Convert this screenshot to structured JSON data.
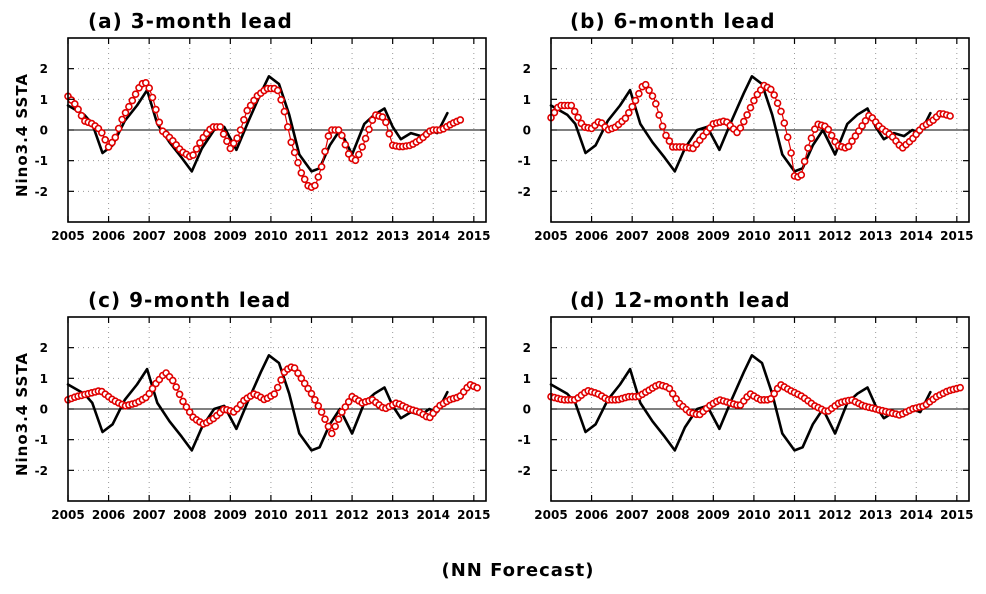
{
  "figure": {
    "footer": "(NN Forecast)"
  },
  "colors": {
    "observed": "#000000",
    "forecast": "#e00000",
    "grid": "#9a9a9a"
  },
  "chart_data": [
    {
      "type": "line",
      "title": "(a) 3-month lead",
      "ylabel": "Nino3.4 SSTA",
      "xlim": [
        2005,
        2015.3
      ],
      "ylim": [
        -3,
        3
      ],
      "xticks": [
        2005,
        2006,
        2007,
        2008,
        2009,
        2010,
        2011,
        2012,
        2013,
        2014,
        2015
      ],
      "yticks": [
        -2,
        -1,
        0,
        1,
        2
      ],
      "grid": true,
      "series": [
        {
          "style": "black-line",
          "x": [
            2005.0,
            2005.4,
            2005.6,
            2005.85,
            2006.1,
            2006.4,
            2006.7,
            2006.95,
            2007.2,
            2007.5,
            2007.8,
            2008.05,
            2008.3,
            2008.6,
            2008.85,
            2009.15,
            2009.45,
            2009.75,
            2009.95,
            2010.2,
            2010.45,
            2010.7,
            2011.0,
            2011.2,
            2011.45,
            2011.7,
            2012.0,
            2012.3,
            2012.55,
            2012.8,
            2013.0,
            2013.2,
            2013.45,
            2013.7,
            2013.9,
            2014.1,
            2014.35
          ],
          "y": [
            0.8,
            0.5,
            0.2,
            -0.75,
            -0.5,
            0.3,
            0.8,
            1.3,
            0.2,
            -0.4,
            -0.9,
            -1.35,
            -0.6,
            0.0,
            0.1,
            -0.65,
            0.3,
            1.2,
            1.75,
            1.5,
            0.5,
            -0.8,
            -1.35,
            -1.25,
            -0.5,
            0.0,
            -0.8,
            0.2,
            0.5,
            0.7,
            0.1,
            -0.3,
            -0.1,
            -0.2,
            0.0,
            -0.1,
            0.55
          ]
        },
        {
          "style": "red-circles",
          "x": [
            2005.0,
            2005.2,
            2005.4,
            2005.6,
            2005.8,
            2006.0,
            2006.15,
            2006.35,
            2006.6,
            2006.8,
            2006.95,
            2007.1,
            2007.3,
            2007.55,
            2007.8,
            2008.05,
            2008.3,
            2008.55,
            2008.75,
            2009.0,
            2009.2,
            2009.4,
            2009.65,
            2009.9,
            2010.15,
            2010.3,
            2010.5,
            2010.75,
            2010.95,
            2011.1,
            2011.25,
            2011.45,
            2011.7,
            2011.95,
            2012.1,
            2012.3,
            2012.55,
            2012.8,
            2013.0,
            2013.2,
            2013.45,
            2013.7,
            2013.95,
            2014.2,
            2014.45,
            2014.7
          ],
          "y": [
            1.1,
            0.8,
            0.3,
            0.2,
            0.0,
            -0.55,
            -0.3,
            0.4,
            1.0,
            1.5,
            1.55,
            1.0,
            0.0,
            -0.3,
            -0.7,
            -0.9,
            -0.3,
            0.1,
            0.1,
            -0.6,
            -0.2,
            0.6,
            1.1,
            1.35,
            1.35,
            0.8,
            -0.4,
            -1.4,
            -1.9,
            -1.8,
            -1.2,
            0.0,
            0.0,
            -0.9,
            -1.0,
            -0.4,
            0.5,
            0.4,
            -0.5,
            -0.55,
            -0.5,
            -0.3,
            0.0,
            0.0,
            0.2,
            0.35
          ]
        }
      ]
    },
    {
      "type": "line",
      "title": "(b) 6-month lead",
      "xlim": [
        2005,
        2015.3
      ],
      "ylim": [
        -3,
        3
      ],
      "xticks": [
        2005,
        2006,
        2007,
        2008,
        2009,
        2010,
        2011,
        2012,
        2013,
        2014,
        2015
      ],
      "yticks": [
        -2,
        -1,
        0,
        1,
        2
      ],
      "grid": true,
      "series": [
        {
          "style": "black-line",
          "x": [
            2005.0,
            2005.4,
            2005.6,
            2005.85,
            2006.1,
            2006.4,
            2006.7,
            2006.95,
            2007.2,
            2007.5,
            2007.8,
            2008.05,
            2008.3,
            2008.6,
            2008.85,
            2009.15,
            2009.45,
            2009.75,
            2009.95,
            2010.2,
            2010.45,
            2010.7,
            2011.0,
            2011.2,
            2011.45,
            2011.7,
            2012.0,
            2012.3,
            2012.55,
            2012.8,
            2013.0,
            2013.2,
            2013.45,
            2013.7,
            2013.9,
            2014.1,
            2014.35
          ],
          "y": [
            0.8,
            0.5,
            0.2,
            -0.75,
            -0.5,
            0.3,
            0.8,
            1.3,
            0.2,
            -0.4,
            -0.9,
            -1.35,
            -0.6,
            0.0,
            0.1,
            -0.65,
            0.3,
            1.2,
            1.75,
            1.5,
            0.5,
            -0.8,
            -1.35,
            -1.25,
            -0.5,
            0.0,
            -0.8,
            0.2,
            0.5,
            0.7,
            0.1,
            -0.3,
            -0.1,
            -0.2,
            0.0,
            -0.1,
            0.55
          ]
        },
        {
          "style": "red-circles",
          "x": [
            2005.0,
            2005.2,
            2005.5,
            2005.8,
            2006.0,
            2006.2,
            2006.4,
            2006.6,
            2006.85,
            2007.1,
            2007.3,
            2007.55,
            2007.8,
            2008.0,
            2008.25,
            2008.5,
            2008.75,
            2009.0,
            2009.3,
            2009.6,
            2009.8,
            2010.05,
            2010.25,
            2010.45,
            2010.7,
            2010.9,
            2011.0,
            2011.15,
            2011.35,
            2011.55,
            2011.8,
            2012.05,
            2012.3,
            2012.6,
            2012.85,
            2013.1,
            2013.4,
            2013.65,
            2013.9,
            2014.15,
            2014.4,
            2014.6,
            2014.85
          ],
          "y": [
            0.4,
            0.8,
            0.8,
            0.1,
            0.05,
            0.3,
            0.0,
            0.1,
            0.4,
            1.0,
            1.55,
            1.0,
            -0.1,
            -0.55,
            -0.55,
            -0.6,
            -0.2,
            0.2,
            0.3,
            -0.1,
            0.4,
            1.1,
            1.45,
            1.3,
            0.5,
            -0.6,
            -1.5,
            -1.55,
            -0.5,
            0.2,
            0.1,
            -0.5,
            -0.6,
            0.0,
            0.5,
            0.1,
            -0.2,
            -0.6,
            -0.3,
            0.1,
            0.3,
            0.55,
            0.45
          ]
        }
      ]
    },
    {
      "type": "line",
      "title": "(c) 9-month lead",
      "ylabel": "Nino3.4 SSTA",
      "xlim": [
        2005,
        2015.3
      ],
      "ylim": [
        -3,
        3
      ],
      "xticks": [
        2005,
        2006,
        2007,
        2008,
        2009,
        2010,
        2011,
        2012,
        2013,
        2014,
        2015
      ],
      "yticks": [
        -2,
        -1,
        0,
        1,
        2
      ],
      "grid": true,
      "series": [
        {
          "style": "black-line",
          "x": [
            2005.0,
            2005.4,
            2005.6,
            2005.85,
            2006.1,
            2006.4,
            2006.7,
            2006.95,
            2007.2,
            2007.5,
            2007.8,
            2008.05,
            2008.3,
            2008.6,
            2008.85,
            2009.15,
            2009.45,
            2009.75,
            2009.95,
            2010.2,
            2010.45,
            2010.7,
            2011.0,
            2011.2,
            2011.45,
            2011.7,
            2012.0,
            2012.3,
            2012.55,
            2012.8,
            2013.0,
            2013.2,
            2013.45,
            2013.7,
            2013.9,
            2014.1,
            2014.35
          ],
          "y": [
            0.8,
            0.5,
            0.2,
            -0.75,
            -0.5,
            0.3,
            0.8,
            1.3,
            0.2,
            -0.4,
            -0.9,
            -1.35,
            -0.6,
            0.0,
            0.1,
            -0.65,
            0.3,
            1.2,
            1.75,
            1.5,
            0.5,
            -0.8,
            -1.35,
            -1.25,
            -0.5,
            0.0,
            -0.8,
            0.2,
            0.5,
            0.7,
            0.1,
            -0.3,
            -0.1,
            -0.2,
            0.0,
            -0.1,
            0.55
          ]
        },
        {
          "style": "red-circles",
          "x": [
            2005.0,
            2005.2,
            2005.5,
            2005.8,
            2006.1,
            2006.4,
            2006.7,
            2006.95,
            2007.15,
            2007.4,
            2007.6,
            2007.85,
            2008.1,
            2008.35,
            2008.6,
            2008.85,
            2009.1,
            2009.35,
            2009.6,
            2009.85,
            2010.1,
            2010.35,
            2010.55,
            2010.8,
            2011.0,
            2011.25,
            2011.5,
            2011.75,
            2012.0,
            2012.25,
            2012.5,
            2012.8,
            2013.1,
            2013.4,
            2013.65,
            2013.9,
            2014.15,
            2014.4,
            2014.65,
            2014.9,
            2015.15
          ],
          "y": [
            0.3,
            0.4,
            0.5,
            0.6,
            0.3,
            0.1,
            0.2,
            0.4,
            0.8,
            1.2,
            0.9,
            0.2,
            -0.3,
            -0.5,
            -0.3,
            0.0,
            -0.1,
            0.3,
            0.5,
            0.3,
            0.5,
            1.25,
            1.4,
            0.9,
            0.5,
            -0.1,
            -0.8,
            -0.1,
            0.4,
            0.2,
            0.3,
            0.0,
            0.2,
            0.0,
            -0.1,
            -0.3,
            0.1,
            0.3,
            0.4,
            0.8,
            0.65
          ]
        }
      ]
    },
    {
      "type": "line",
      "title": "(d) 12-month lead",
      "xlim": [
        2005,
        2015.3
      ],
      "ylim": [
        -3,
        3
      ],
      "xticks": [
        2005,
        2006,
        2007,
        2008,
        2009,
        2010,
        2011,
        2012,
        2013,
        2014,
        2015
      ],
      "yticks": [
        -2,
        -1,
        0,
        1,
        2
      ],
      "grid": true,
      "series": [
        {
          "style": "black-line",
          "x": [
            2005.0,
            2005.4,
            2005.6,
            2005.85,
            2006.1,
            2006.4,
            2006.7,
            2006.95,
            2007.2,
            2007.5,
            2007.8,
            2008.05,
            2008.3,
            2008.6,
            2008.85,
            2009.15,
            2009.45,
            2009.75,
            2009.95,
            2010.2,
            2010.45,
            2010.7,
            2011.0,
            2011.2,
            2011.45,
            2011.7,
            2012.0,
            2012.3,
            2012.55,
            2012.8,
            2013.0,
            2013.2,
            2013.45,
            2013.7,
            2013.9,
            2014.1,
            2014.35
          ],
          "y": [
            0.8,
            0.5,
            0.2,
            -0.75,
            -0.5,
            0.3,
            0.8,
            1.3,
            0.2,
            -0.4,
            -0.9,
            -1.35,
            -0.6,
            0.0,
            0.1,
            -0.65,
            0.3,
            1.2,
            1.75,
            1.5,
            0.5,
            -0.8,
            -1.35,
            -1.25,
            -0.5,
            0.0,
            -0.8,
            0.2,
            0.5,
            0.7,
            0.1,
            -0.3,
            -0.1,
            -0.2,
            0.0,
            -0.1,
            0.55
          ]
        },
        {
          "style": "red-circles",
          "x": [
            2005.0,
            2005.3,
            2005.6,
            2005.9,
            2006.15,
            2006.4,
            2006.65,
            2006.9,
            2007.15,
            2007.4,
            2007.65,
            2007.9,
            2008.15,
            2008.4,
            2008.65,
            2008.9,
            2009.15,
            2009.4,
            2009.65,
            2009.9,
            2010.15,
            2010.4,
            2010.65,
            2010.9,
            2011.2,
            2011.5,
            2011.8,
            2012.1,
            2012.4,
            2012.7,
            2013.0,
            2013.3,
            2013.6,
            2013.9,
            2014.2,
            2014.5,
            2014.8,
            2015.1
          ],
          "y": [
            0.4,
            0.3,
            0.3,
            0.6,
            0.5,
            0.3,
            0.3,
            0.4,
            0.4,
            0.6,
            0.8,
            0.7,
            0.2,
            -0.1,
            -0.2,
            0.1,
            0.3,
            0.2,
            0.1,
            0.5,
            0.3,
            0.3,
            0.8,
            0.6,
            0.4,
            0.1,
            -0.1,
            0.2,
            0.3,
            0.1,
            0.0,
            -0.1,
            -0.2,
            0.0,
            0.1,
            0.4,
            0.6,
            0.7
          ]
        }
      ]
    }
  ]
}
